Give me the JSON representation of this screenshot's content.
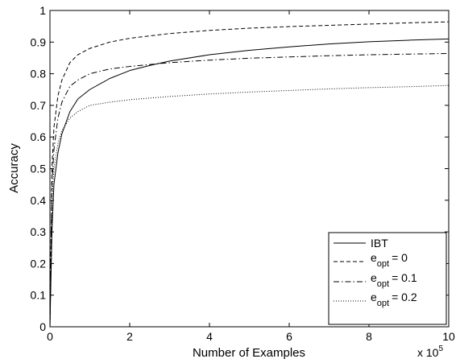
{
  "chart_data": {
    "type": "line",
    "xlabel": "Number of Examples",
    "ylabel": "Accuracy",
    "x_multiplier": {
      "base": "x 10",
      "exponent": "5"
    },
    "xlim": [
      0,
      10
    ],
    "ylim": [
      0,
      1
    ],
    "x_ticks": [
      "0",
      "2",
      "4",
      "6",
      "8",
      "10"
    ],
    "y_ticks": [
      "0",
      "0.1",
      "0.2",
      "0.3",
      "0.4",
      "0.5",
      "0.6",
      "0.7",
      "0.8",
      "0.9",
      "1"
    ],
    "grid": false,
    "legend_position": "bottom-right",
    "series": [
      {
        "name": "IBT",
        "label": "IBT",
        "line_style": "solid",
        "x": [
          0,
          0.05,
          0.1,
          0.2,
          0.3,
          0.5,
          0.7,
          1,
          1.5,
          2,
          2.5,
          3,
          4,
          5,
          6,
          7,
          8,
          9,
          10
        ],
        "values": [
          0,
          0.3,
          0.45,
          0.55,
          0.61,
          0.68,
          0.72,
          0.75,
          0.785,
          0.81,
          0.826,
          0.84,
          0.86,
          0.874,
          0.885,
          0.894,
          0.901,
          0.906,
          0.91
        ]
      },
      {
        "name": "e_opt = 0",
        "label": {
          "base": "e",
          "sub": "opt",
          "value": "=  0"
        },
        "line_style": "dashed",
        "x": [
          0,
          0.05,
          0.1,
          0.2,
          0.3,
          0.5,
          0.7,
          1,
          1.5,
          2,
          3,
          4,
          5,
          6,
          7,
          8,
          9,
          10
        ],
        "values": [
          0,
          0.5,
          0.63,
          0.73,
          0.78,
          0.835,
          0.86,
          0.88,
          0.9,
          0.912,
          0.927,
          0.937,
          0.944,
          0.949,
          0.953,
          0.957,
          0.961,
          0.964
        ]
      },
      {
        "name": "e_opt = 0.1",
        "label": {
          "base": "e",
          "sub": "opt",
          "value": "= 0.1"
        },
        "line_style": "dashdot",
        "x": [
          0,
          0.05,
          0.1,
          0.2,
          0.3,
          0.5,
          0.7,
          1,
          1.5,
          2,
          3,
          4,
          5,
          6,
          7,
          8,
          9,
          10
        ],
        "values": [
          0,
          0.45,
          0.56,
          0.66,
          0.71,
          0.76,
          0.78,
          0.8,
          0.815,
          0.823,
          0.835,
          0.843,
          0.849,
          0.853,
          0.857,
          0.86,
          0.862,
          0.864
        ]
      },
      {
        "name": "e_opt = 0.2",
        "label": {
          "base": "e",
          "sub": "opt",
          "value": "= 0.2"
        },
        "line_style": "dotted",
        "x": [
          0,
          0.05,
          0.1,
          0.2,
          0.3,
          0.5,
          0.7,
          1,
          1.5,
          2,
          3,
          4,
          5,
          6,
          7,
          8,
          9,
          10
        ],
        "values": [
          0,
          0.4,
          0.5,
          0.58,
          0.62,
          0.66,
          0.68,
          0.7,
          0.71,
          0.718,
          0.728,
          0.736,
          0.742,
          0.747,
          0.752,
          0.756,
          0.759,
          0.763
        ]
      }
    ]
  }
}
